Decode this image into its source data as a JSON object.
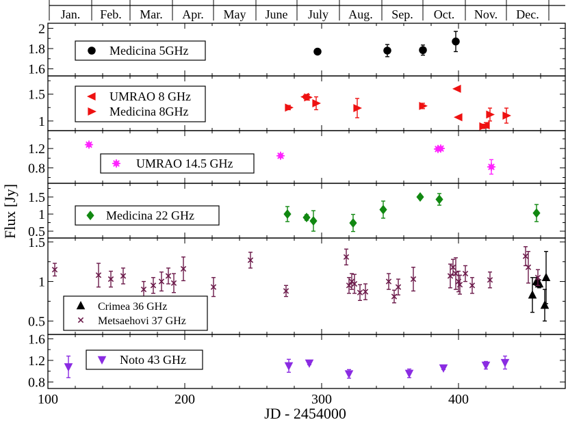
{
  "chart_data": {
    "type": "scatter",
    "xlabel": "JD - 2454000",
    "ylabel": "Flux [Jy]",
    "xlim": [
      100,
      478
    ],
    "x_ticks": [
      100,
      200,
      300,
      400
    ],
    "months": [
      "Jan.",
      "Feb.",
      "Mar.",
      "Apr.",
      "May",
      "June",
      "July",
      "Aug.",
      "Sep.",
      "Oct.",
      "Nov.",
      "Dec."
    ],
    "month_boundaries": [
      101,
      132,
      160,
      191,
      221,
      252,
      282,
      313,
      344,
      374,
      405,
      435,
      466
    ],
    "panels": [
      {
        "id": "medicina-5",
        "ylim": [
          1.53,
          2.05
        ],
        "yticks": [
          1.6,
          1.8,
          2.0
        ],
        "ytick_labels": [
          "1.6",
          "1.8",
          "2"
        ],
        "series": [
          {
            "name": "Medicina 5GHz",
            "marker": "circle",
            "color": "#000000",
            "points": [
              [
                297,
                1.77,
                0.02
              ],
              [
                348,
                1.78,
                0.06
              ],
              [
                374,
                1.785,
                0.05
              ],
              [
                398,
                1.87,
                0.1
              ]
            ]
          }
        ]
      },
      {
        "id": "8ghz",
        "ylim": [
          0.82,
          1.84
        ],
        "yticks": [
          1.0,
          1.5
        ],
        "ytick_labels": [
          "1",
          "1.5"
        ],
        "series": [
          {
            "name": "UMRAO 8 GHz",
            "marker": "tri-left",
            "color": "#ee1111",
            "points": [
              [
                288,
                1.45,
                0.03
              ],
              [
                399,
                1.6,
                0
              ],
              [
                400,
                1.07,
                0
              ],
              [
                420,
                0.92,
                0.05
              ]
            ]
          },
          {
            "name": "Medicina 8GHz",
            "marker": "tri-right",
            "color": "#ee1111",
            "points": [
              [
                276,
                1.25,
                0.04
              ],
              [
                290,
                1.44,
                0.05
              ],
              [
                296,
                1.33,
                0.12
              ],
              [
                326,
                1.24,
                0.18
              ],
              [
                374,
                1.28,
                0.05
              ],
              [
                418,
                0.9,
                0.04
              ],
              [
                423,
                1.12,
                0.12
              ],
              [
                435,
                1.1,
                0.14
              ]
            ]
          }
        ]
      },
      {
        "id": "umrao-14",
        "ylim": [
          0.48,
          1.57
        ],
        "yticks": [
          0.8,
          1.2
        ],
        "ytick_labels": [
          "0.8",
          "1.2"
        ],
        "series": [
          {
            "name": "UMRAO 14.5 GHz",
            "marker": "star",
            "color": "#ff22ff",
            "points": [
              [
                130,
                1.28,
                0.02
              ],
              [
                270,
                1.05,
                0.02
              ],
              [
                385,
                1.19,
                0.03
              ],
              [
                387,
                1.2,
                0.03
              ],
              [
                424,
                0.82,
                0.15
              ]
            ]
          }
        ]
      },
      {
        "id": "medicina-22",
        "ylim": [
          0.3,
          1.9
        ],
        "yticks": [
          0.5,
          1.0,
          1.5
        ],
        "ytick_labels": [
          "0.5",
          "1",
          "1.5"
        ],
        "series": [
          {
            "name": "Medicina 22 GHz",
            "marker": "diamond",
            "color": "#118811",
            "points": [
              [
                275,
                1.0,
                0.22
              ],
              [
                289,
                0.9,
                0.08
              ],
              [
                294,
                0.8,
                0.3
              ],
              [
                323,
                0.74,
                0.25
              ],
              [
                345,
                1.13,
                0.25
              ],
              [
                372,
                1.5,
                0.05
              ],
              [
                386,
                1.43,
                0.17
              ],
              [
                457,
                1.03,
                0.25
              ]
            ]
          }
        ]
      },
      {
        "id": "36-37ghz",
        "ylim": [
          0.33,
          1.55
        ],
        "yticks": [
          0.5,
          1.0,
          1.5
        ],
        "ytick_labels": [
          "0.5",
          "1",
          "1.5"
        ],
        "series": [
          {
            "name": "Crimea 36 GHz",
            "marker": "tri-up",
            "color": "#000000",
            "points": [
              [
                454,
                0.83,
                0.22
              ],
              [
                457,
                1.0,
                0.05
              ],
              [
                459,
                0.97,
                0.05
              ],
              [
                463,
                0.7,
                0.2
              ],
              [
                464,
                1.05,
                0.33
              ]
            ]
          },
          {
            "name": "Metsaehovi 37 GHz",
            "marker": "x",
            "color": "#6b1a4a",
            "points": [
              [
                105,
                1.15,
                0.08
              ],
              [
                137,
                1.08,
                0.15
              ],
              [
                146,
                1.03,
                0.1
              ],
              [
                155,
                1.07,
                0.1
              ],
              [
                170,
                0.9,
                0.1
              ],
              [
                177,
                0.95,
                0.1
              ],
              [
                183,
                1.0,
                0.12
              ],
              [
                188,
                1.07,
                0.1
              ],
              [
                192,
                0.98,
                0.12
              ],
              [
                199,
                1.16,
                0.15
              ],
              [
                221,
                0.93,
                0.12
              ],
              [
                248,
                1.27,
                0.1
              ],
              [
                274,
                0.88,
                0.07
              ],
              [
                318,
                1.31,
                0.1
              ],
              [
                320,
                0.95,
                0.1
              ],
              [
                322,
                1.0,
                0.1
              ],
              [
                324,
                0.97,
                0.12
              ],
              [
                328,
                0.86,
                0.1
              ],
              [
                332,
                0.87,
                0.1
              ],
              [
                349,
                1.0,
                0.1
              ],
              [
                353,
                0.81,
                0.08
              ],
              [
                356,
                0.93,
                0.1
              ],
              [
                367,
                1.03,
                0.15
              ],
              [
                394,
                1.07,
                0.15
              ],
              [
                396,
                1.18,
                0.1
              ],
              [
                398,
                1.1,
                0.2
              ],
              [
                400,
                1.0,
                0.13
              ],
              [
                401,
                0.96,
                0.12
              ],
              [
                405,
                1.1,
                0.1
              ],
              [
                410,
                0.95,
                0.1
              ],
              [
                423,
                1.02,
                0.1
              ],
              [
                449,
                1.32,
                0.12
              ],
              [
                451,
                1.18,
                0.2
              ],
              [
                458,
                1.05,
                0.1
              ]
            ]
          }
        ]
      },
      {
        "id": "noto-43",
        "ylim": [
          0.68,
          1.68
        ],
        "yticks": [
          0.8,
          1.2,
          1.6
        ],
        "ytick_labels": [
          "0.8",
          "1.2",
          "1.6"
        ],
        "series": [
          {
            "name": "Noto 43 GHz",
            "marker": "tri-down",
            "color": "#8a2be2",
            "points": [
              [
                115,
                1.08,
                0.2
              ],
              [
                276,
                1.1,
                0.12
              ],
              [
                291,
                1.15,
                0.03
              ],
              [
                320,
                0.95,
                0.08
              ],
              [
                364,
                0.96,
                0.08
              ],
              [
                389,
                1.06,
                0.03
              ],
              [
                420,
                1.11,
                0.07
              ],
              [
                434,
                1.16,
                0.12
              ]
            ]
          }
        ]
      }
    ]
  }
}
